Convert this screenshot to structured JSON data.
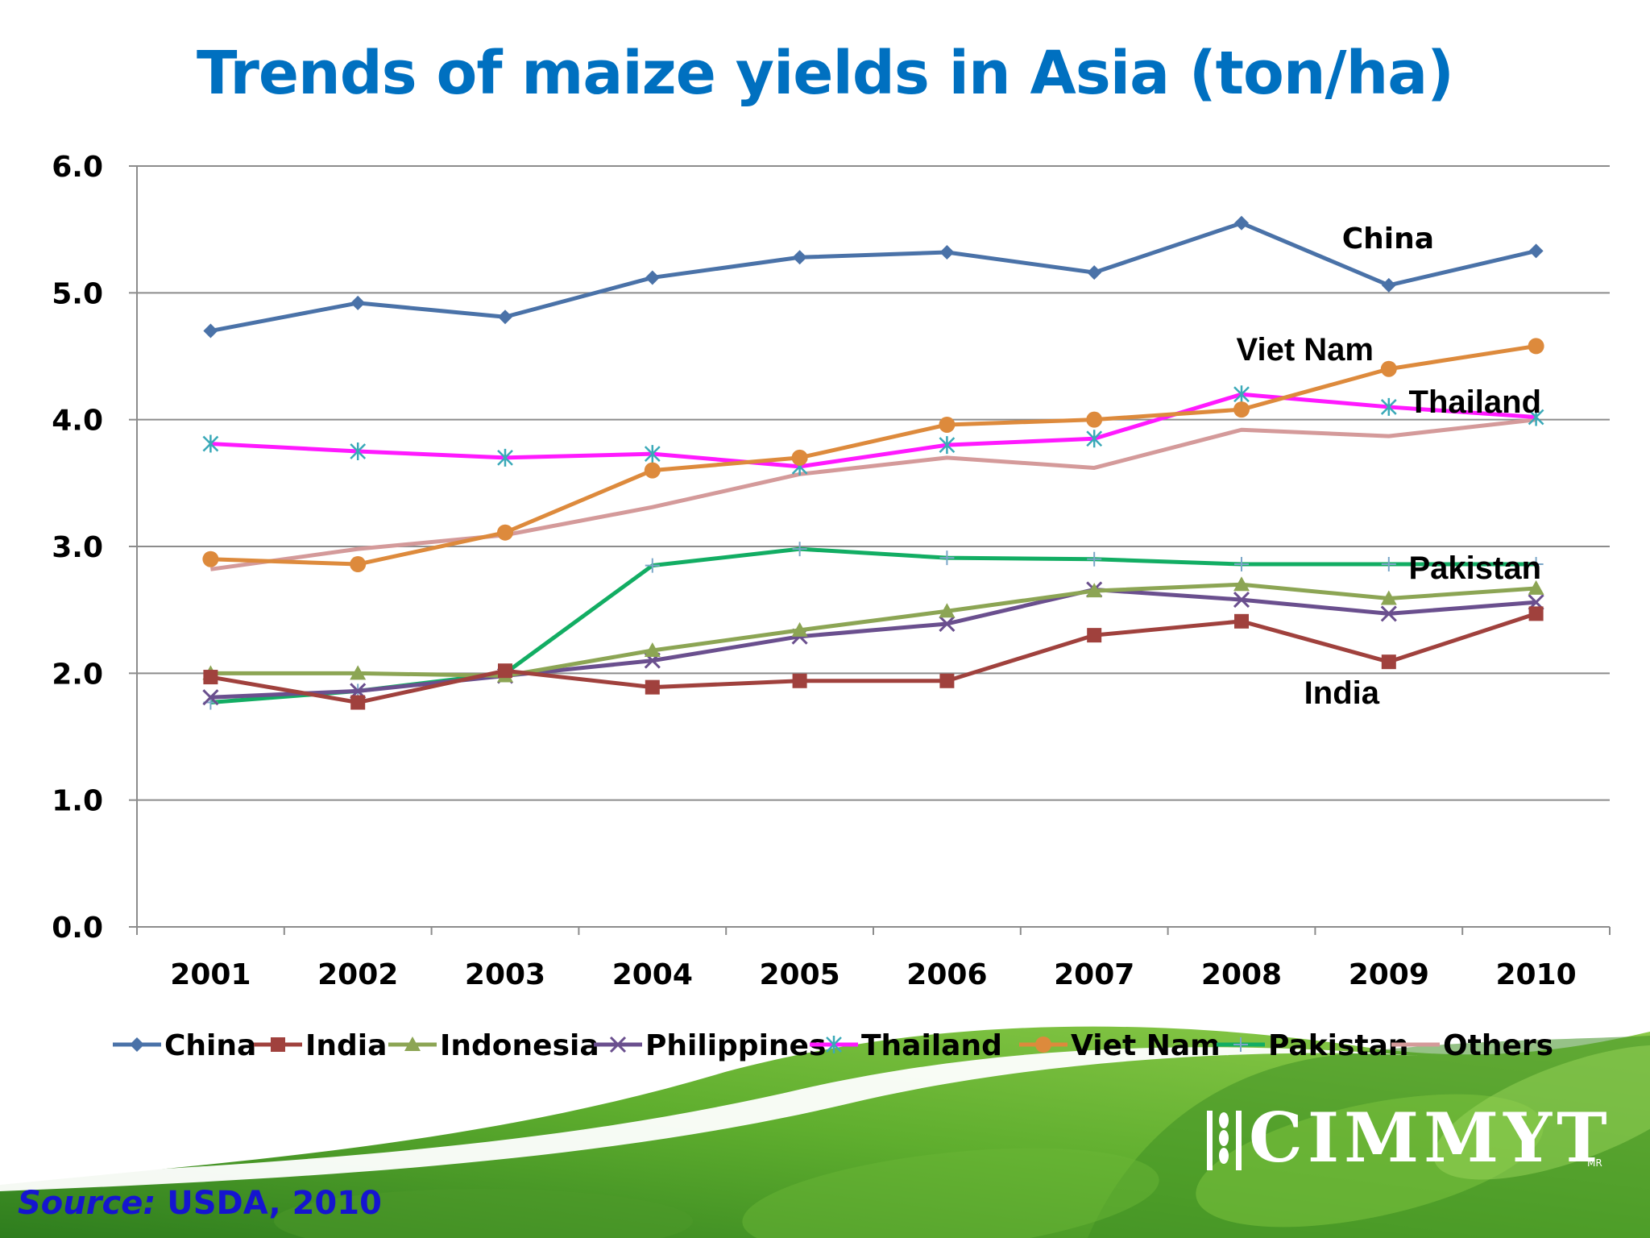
{
  "slide": {
    "title": "Trends of maize yields in Asia (ton/ha)",
    "source_label": "Source:",
    "source_value": "USDA, 2010",
    "logo_text": "CIMMYT",
    "logo_mark": "MR",
    "background_colors": {
      "green_dark": "#2e7d1e",
      "green_light": "#8dcb4a",
      "swoosh": "#ffffff"
    }
  },
  "chart_data": {
    "type": "line",
    "title": "Trends of maize yields in Asia (ton/ha)",
    "categories": [
      "2001",
      "2002",
      "2003",
      "2004",
      "2005",
      "2006",
      "2007",
      "2008",
      "2009",
      "2010"
    ],
    "ylim": [
      0,
      6
    ],
    "yticks": [
      "0.0",
      "1.0",
      "2.0",
      "3.0",
      "4.0",
      "5.0",
      "6.0"
    ],
    "grid": true,
    "legend_position": "bottom",
    "series": [
      {
        "name": "China",
        "color": "#4a72a8",
        "marker": "diamond",
        "values": [
          4.7,
          4.92,
          4.81,
          5.12,
          5.28,
          5.32,
          5.16,
          5.55,
          5.06,
          5.33
        ]
      },
      {
        "name": "India",
        "color": "#a0413d",
        "marker": "square",
        "values": [
          1.97,
          1.77,
          2.02,
          1.89,
          1.94,
          1.94,
          2.3,
          2.41,
          2.09,
          2.47
        ]
      },
      {
        "name": "Indonesia",
        "color": "#8ca554",
        "marker": "triangle",
        "values": [
          2.0,
          2.0,
          1.98,
          2.18,
          2.34,
          2.49,
          2.65,
          2.7,
          2.59,
          2.67
        ]
      },
      {
        "name": "Philippines",
        "color": "#6a4f8e",
        "marker": "x",
        "values": [
          1.81,
          1.86,
          1.98,
          2.1,
          2.29,
          2.39,
          2.66,
          2.58,
          2.47,
          2.56
        ]
      },
      {
        "name": "Thailand",
        "color": "#ff19ff",
        "marker": "star",
        "values": [
          3.81,
          3.75,
          3.7,
          3.73,
          3.63,
          3.8,
          3.85,
          4.2,
          4.1,
          4.02
        ]
      },
      {
        "name": "Viet Nam",
        "color": "#dd8a3c",
        "marker": "circle",
        "values": [
          2.9,
          2.86,
          3.11,
          3.6,
          3.7,
          3.96,
          4.0,
          4.08,
          4.4,
          4.58
        ]
      },
      {
        "name": "Pakistan",
        "color": "#12ad63",
        "marker": "plus",
        "values": [
          1.77,
          1.86,
          2.0,
          2.85,
          2.98,
          2.91,
          2.9,
          2.86,
          2.86,
          2.86
        ]
      },
      {
        "name": "Others",
        "color": "#d49a9a",
        "marker": "none",
        "values": [
          2.82,
          2.98,
          3.09,
          3.31,
          3.57,
          3.7,
          3.62,
          3.92,
          3.87,
          4.0
        ]
      }
    ],
    "annotations": [
      {
        "text": "China",
        "series": "China"
      },
      {
        "text": "Viet Nam",
        "series": "Viet Nam"
      },
      {
        "text": "Thailand",
        "series": "Thailand"
      },
      {
        "text": "Pakistan",
        "series": "Pakistan"
      },
      {
        "text": "India",
        "series": "India"
      }
    ]
  }
}
